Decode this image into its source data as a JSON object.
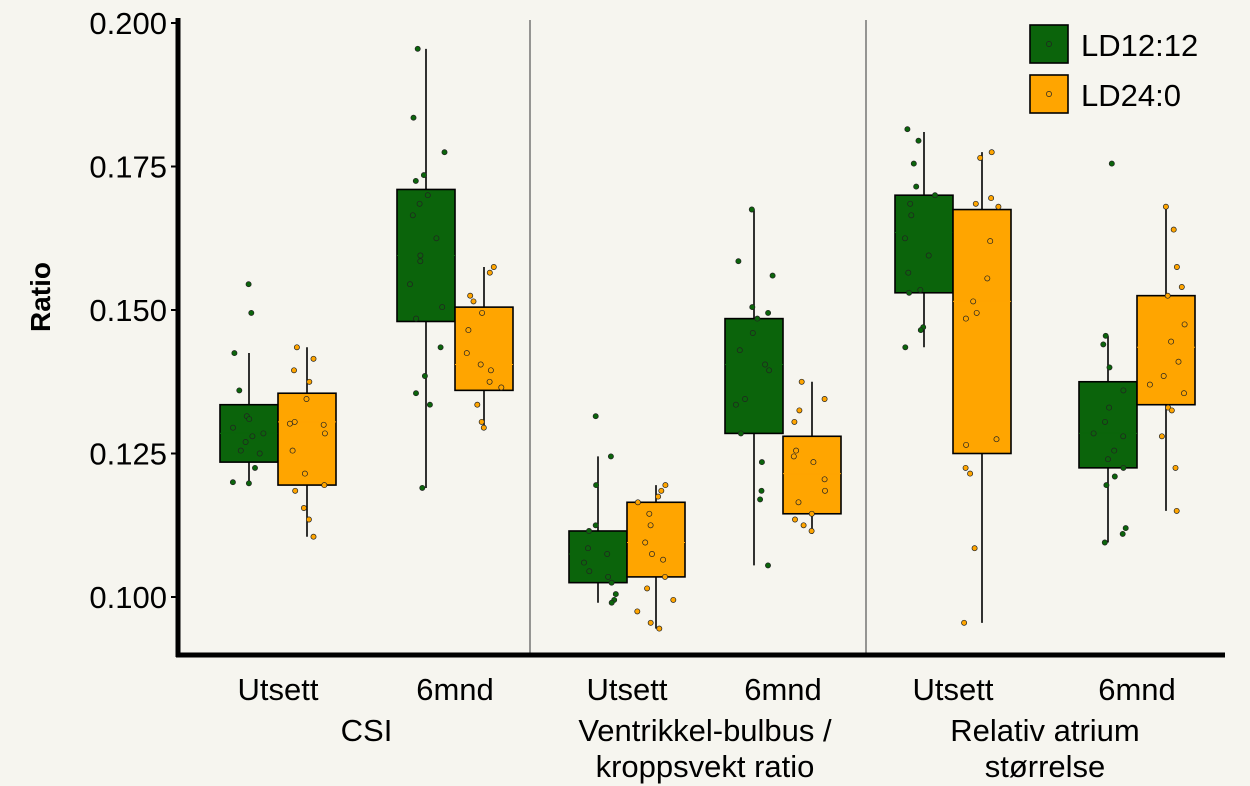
{
  "chart_data": {
    "type": "box",
    "ylabel": "Ratio",
    "ylim": [
      0.089,
      0.204
    ],
    "yticks": [
      "0.100",
      "0.125",
      "0.150",
      "0.175",
      "0.200"
    ],
    "ytick_values": [
      0.1,
      0.125,
      0.15,
      0.175,
      0.2
    ],
    "legend": {
      "placement": "top-right",
      "entries": [
        "LD12:12",
        "LD24:0"
      ]
    },
    "colors": {
      "LD12:12": "#0b640b",
      "LD24:0": "#ffa500",
      "background": "#f6f5ef"
    },
    "panels": [
      {
        "label_lines": [
          "CSI"
        ],
        "groups": [
          {
            "label": "Utsett",
            "boxes": [
              {
                "series": "LD12:12",
                "whisker_low": 0.12,
                "q1": 0.1235,
                "median": 0.1285,
                "q3": 0.1335,
                "whisker_high": 0.1425,
                "points": [
                  0.1545,
                  0.1495,
                  0.1425,
                  0.136,
                  0.1315,
                  0.131,
                  0.1295,
                  0.1285,
                  0.128,
                  0.127,
                  0.1255,
                  0.125,
                  0.1225,
                  0.12,
                  0.1198
                ]
              },
              {
                "series": "LD24:0",
                "whisker_low": 0.1105,
                "q1": 0.1195,
                "median": 0.1305,
                "q3": 0.1355,
                "whisker_high": 0.1435,
                "points": [
                  0.1435,
                  0.1415,
                  0.1395,
                  0.1375,
                  0.1345,
                  0.1305,
                  0.1302,
                  0.13,
                  0.1285,
                  0.1255,
                  0.1215,
                  0.1195,
                  0.1185,
                  0.1155,
                  0.1135,
                  0.1105
                ]
              }
            ]
          },
          {
            "label": "6mnd",
            "boxes": [
              {
                "series": "LD12:12",
                "whisker_low": 0.119,
                "q1": 0.148,
                "median": 0.1595,
                "q3": 0.171,
                "whisker_high": 0.1955,
                "points": [
                  0.1955,
                  0.1835,
                  0.1775,
                  0.1735,
                  0.1725,
                  0.17,
                  0.1685,
                  0.1665,
                  0.1625,
                  0.1595,
                  0.1585,
                  0.1545,
                  0.1505,
                  0.1485,
                  0.1435,
                  0.1385,
                  0.1355,
                  0.1335,
                  0.119
                ]
              },
              {
                "series": "LD24:0",
                "whisker_low": 0.129,
                "q1": 0.136,
                "median": 0.1405,
                "q3": 0.1505,
                "whisker_high": 0.1575,
                "points": [
                  0.1575,
                  0.1565,
                  0.1525,
                  0.1515,
                  0.1495,
                  0.1465,
                  0.1425,
                  0.1405,
                  0.1395,
                  0.1375,
                  0.1365,
                  0.1335,
                  0.1305,
                  0.1295
                ]
              }
            ]
          }
        ]
      },
      {
        "label_lines": [
          "Ventrikkel-bulbus /",
          "kroppsvekt ratio"
        ],
        "groups": [
          {
            "label": "Utsett",
            "boxes": [
              {
                "series": "LD12:12",
                "whisker_low": 0.099,
                "q1": 0.1025,
                "median": 0.1075,
                "q3": 0.1115,
                "whisker_high": 0.1245,
                "points": [
                  0.1315,
                  0.1245,
                  0.1195,
                  0.1125,
                  0.1115,
                  0.1085,
                  0.1075,
                  0.106,
                  0.1045,
                  0.1035,
                  0.1025,
                  0.1005,
                  0.0995,
                  0.099
                ]
              },
              {
                "series": "LD24:0",
                "whisker_low": 0.0945,
                "q1": 0.1035,
                "median": 0.1095,
                "q3": 0.1165,
                "whisker_high": 0.1195,
                "points": [
                  0.1195,
                  0.1185,
                  0.1175,
                  0.1165,
                  0.1145,
                  0.1125,
                  0.1095,
                  0.1075,
                  0.1065,
                  0.1035,
                  0.1015,
                  0.0995,
                  0.0975,
                  0.0955,
                  0.0945
                ]
              }
            ]
          },
          {
            "label": "6mnd",
            "boxes": [
              {
                "series": "LD12:12",
                "whisker_low": 0.1055,
                "q1": 0.1285,
                "median": 0.1405,
                "q3": 0.1485,
                "whisker_high": 0.1675,
                "points": [
                  0.1675,
                  0.1585,
                  0.156,
                  0.1505,
                  0.1495,
                  0.1485,
                  0.146,
                  0.143,
                  0.1405,
                  0.1395,
                  0.1345,
                  0.1335,
                  0.1285,
                  0.1235,
                  0.1185,
                  0.117,
                  0.1055
                ]
              },
              {
                "series": "LD24:0",
                "whisker_low": 0.111,
                "q1": 0.1145,
                "median": 0.1215,
                "q3": 0.128,
                "whisker_high": 0.1375,
                "points": [
                  0.1375,
                  0.1345,
                  0.1325,
                  0.1305,
                  0.1255,
                  0.1245,
                  0.1235,
                  0.1205,
                  0.1185,
                  0.1165,
                  0.1145,
                  0.1135,
                  0.1125,
                  0.1115
                ]
              }
            ]
          }
        ]
      },
      {
        "label_lines": [
          "Relativ atrium",
          "størrelse"
        ],
        "groups": [
          {
            "label": "Utsett",
            "boxes": [
              {
                "series": "LD12:12",
                "whisker_low": 0.1435,
                "q1": 0.153,
                "median": 0.1635,
                "q3": 0.17,
                "whisker_high": 0.181,
                "points": [
                  0.1815,
                  0.1795,
                  0.1755,
                  0.1715,
                  0.17,
                  0.1685,
                  0.1665,
                  0.1625,
                  0.1595,
                  0.1565,
                  0.1535,
                  0.153,
                  0.147,
                  0.1465,
                  0.1435
                ]
              },
              {
                "series": "LD24:0",
                "whisker_low": 0.0955,
                "q1": 0.125,
                "median": 0.1515,
                "q3": 0.1675,
                "whisker_high": 0.1775,
                "points": [
                  0.1775,
                  0.1765,
                  0.1695,
                  0.1685,
                  0.168,
                  0.162,
                  0.1555,
                  0.1515,
                  0.1495,
                  0.1485,
                  0.1275,
                  0.1265,
                  0.1225,
                  0.1215,
                  0.1085,
                  0.0955
                ]
              }
            ]
          },
          {
            "label": "6mnd",
            "boxes": [
              {
                "series": "LD12:12",
                "whisker_low": 0.1095,
                "q1": 0.1225,
                "median": 0.1285,
                "q3": 0.1375,
                "whisker_high": 0.1455,
                "points": [
                  0.1755,
                  0.1455,
                  0.144,
                  0.14,
                  0.136,
                  0.133,
                  0.1305,
                  0.1285,
                  0.128,
                  0.1255,
                  0.124,
                  0.1225,
                  0.121,
                  0.1195,
                  0.112,
                  0.111,
                  0.1095
                ]
              },
              {
                "series": "LD24:0",
                "whisker_low": 0.115,
                "q1": 0.1335,
                "median": 0.1435,
                "q3": 0.1525,
                "whisker_high": 0.168,
                "points": [
                  0.168,
                  0.164,
                  0.1575,
                  0.154,
                  0.1525,
                  0.1475,
                  0.1445,
                  0.141,
                  0.1385,
                  0.137,
                  0.1355,
                  0.133,
                  0.1325,
                  0.128,
                  0.1225,
                  0.115
                ]
              }
            ]
          }
        ]
      }
    ]
  }
}
